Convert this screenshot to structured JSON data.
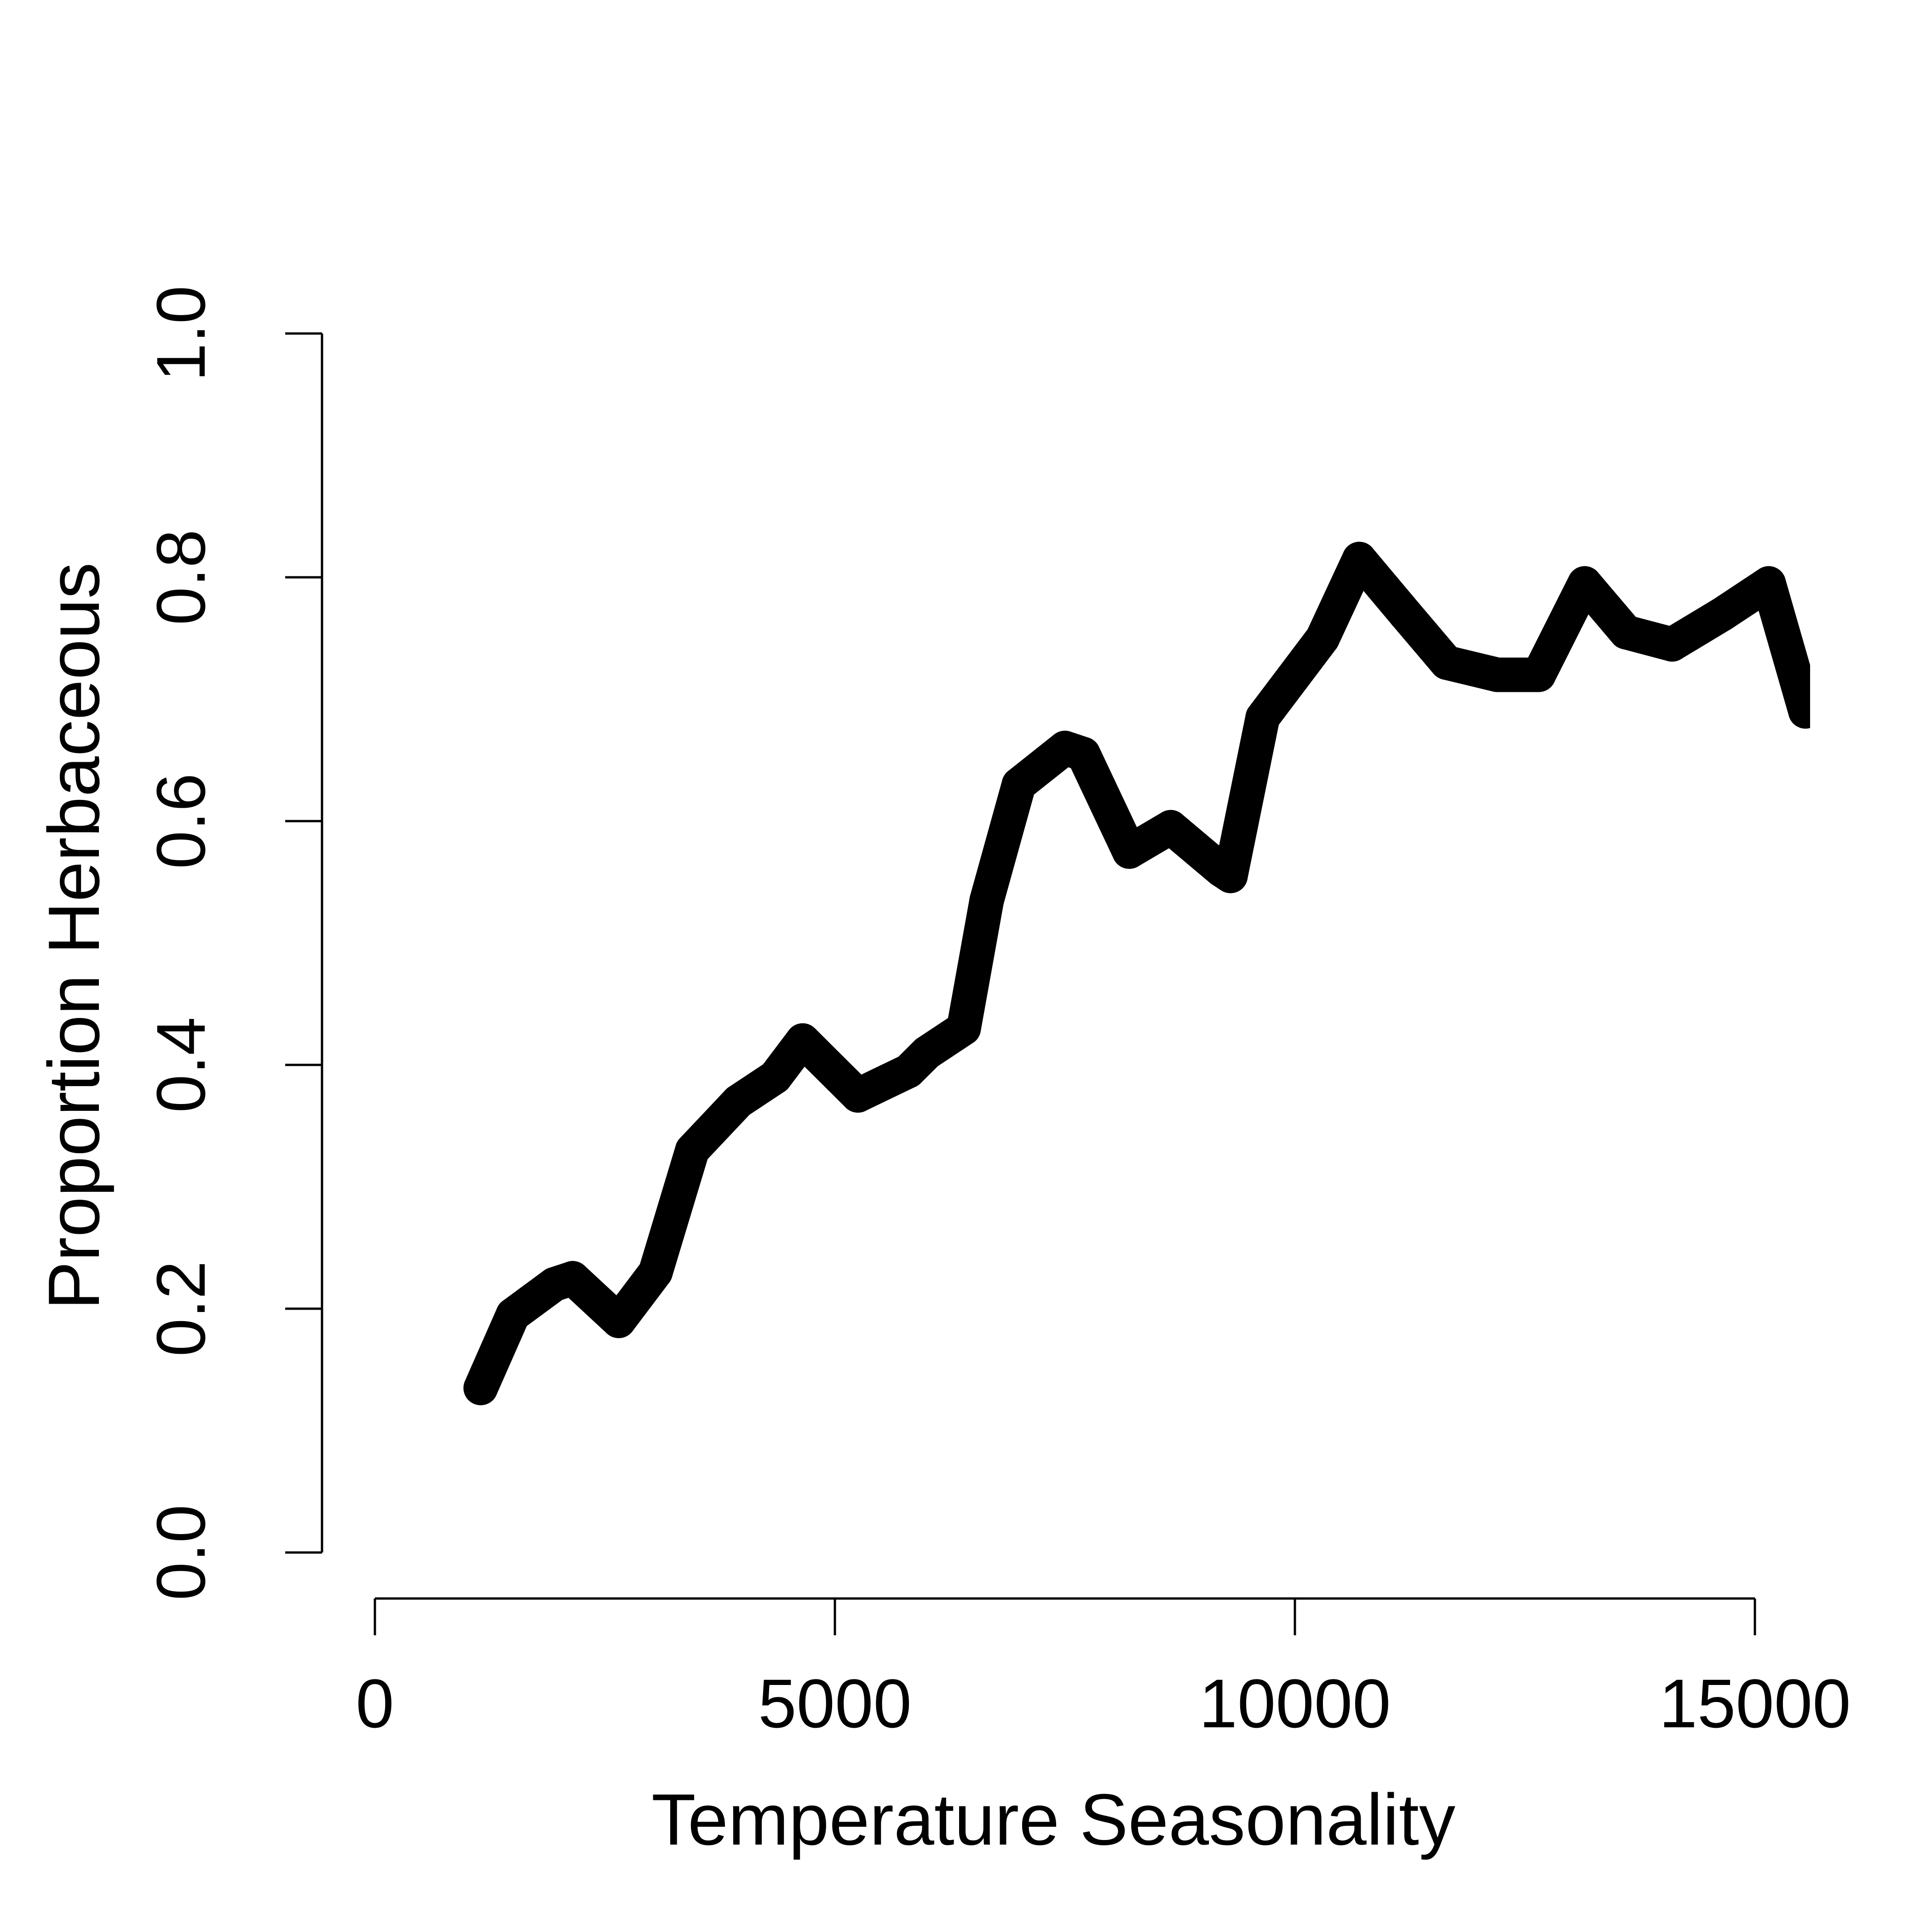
{
  "chart_data": {
    "type": "line",
    "title": "",
    "xlabel": "Temperature Seasonality",
    "ylabel": "Proportion Herbaceous",
    "xlim": [
      0,
      15800
    ],
    "ylim": [
      0,
      1
    ],
    "grid": false,
    "line_color": "#000000",
    "x_ticks": [
      {
        "value": 0,
        "label": "0"
      },
      {
        "value": 5000,
        "label": "5000"
      },
      {
        "value": 10000,
        "label": "10000"
      },
      {
        "value": 15000,
        "label": "15000"
      }
    ],
    "y_ticks": [
      {
        "value": 0,
        "label": "0.0"
      },
      {
        "value": 0.2,
        "label": "0.2"
      },
      {
        "value": 0.4,
        "label": "0.4"
      },
      {
        "value": 0.6,
        "label": "0.6"
      },
      {
        "value": 0.8,
        "label": "0.8"
      },
      {
        "value": 1,
        "label": "1.0"
      }
    ],
    "series": [
      {
        "x": [
          1150,
          1500,
          1950,
          2150,
          2650,
          3050,
          3450,
          3950,
          4350,
          4650,
          5250,
          5800,
          6000,
          6400,
          6650,
          7000,
          7500,
          7700,
          8200,
          8650,
          9200,
          9300,
          9650,
          10300,
          10700,
          11200,
          11650,
          12200,
          12650,
          13150,
          13600,
          14100,
          14650,
          15150,
          15550
        ],
        "y": [
          0.135,
          0.195,
          0.22,
          0.225,
          0.19,
          0.23,
          0.33,
          0.37,
          0.39,
          0.42,
          0.375,
          0.395,
          0.41,
          0.43,
          0.535,
          0.63,
          0.66,
          0.655,
          0.575,
          0.595,
          0.56,
          0.555,
          0.685,
          0.75,
          0.815,
          0.77,
          0.73,
          0.72,
          0.72,
          0.795,
          0.755,
          0.745,
          0.77,
          0.795,
          0.69
        ]
      }
    ]
  }
}
